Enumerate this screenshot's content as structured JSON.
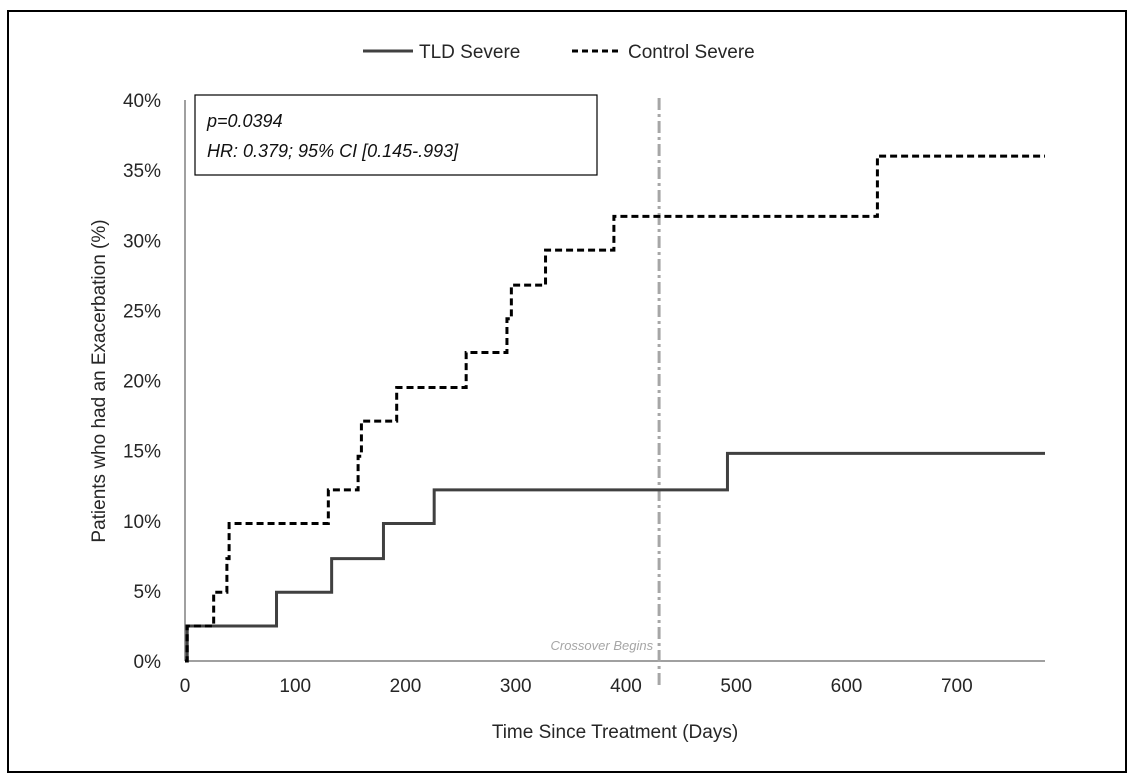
{
  "chart_data": {
    "type": "line",
    "step": true,
    "xlabel": "Time Since Treatment (Days)",
    "ylabel": "Patients who had an Exacerbation (%)",
    "xlim": [
      0,
      780
    ],
    "ylim": [
      0,
      40
    ],
    "x_ticks": [
      0,
      100,
      200,
      300,
      400,
      500,
      600,
      700
    ],
    "x_tick_labels": [
      "0",
      "100",
      "200",
      "300",
      "400",
      "500",
      "600",
      "700"
    ],
    "y_ticks": [
      0,
      5,
      10,
      15,
      20,
      25,
      30,
      35,
      40
    ],
    "y_tick_labels": [
      "0%",
      "5%",
      "10%",
      "15%",
      "20%",
      "25%",
      "30%",
      "35%",
      "40%"
    ],
    "grid": false,
    "legend": {
      "position": "top-center"
    },
    "series": [
      {
        "name": "TLD Severe",
        "style": "solid",
        "color": "#404040",
        "x": [
          0,
          2,
          83,
          133,
          180,
          226,
          492,
          780
        ],
        "y": [
          0,
          2.5,
          4.9,
          7.3,
          9.8,
          12.2,
          14.8,
          14.8
        ]
      },
      {
        "name": "Control Severe",
        "style": "dashed",
        "color": "#000000",
        "x": [
          0,
          2,
          26,
          38,
          40,
          130,
          157,
          160,
          192,
          255,
          292,
          296,
          327,
          389,
          628,
          780
        ],
        "y": [
          0,
          2.5,
          4.9,
          7.3,
          9.8,
          12.2,
          14.6,
          17.1,
          19.5,
          22.0,
          24.4,
          26.8,
          29.3,
          31.7,
          36.0,
          36.0
        ]
      }
    ],
    "reference_line": {
      "x": 430,
      "label": "Crossover Begins",
      "color": "#a6a6a6"
    },
    "annotations": [
      "p=0.0394",
      "HR: 0.379; 95% CI [0.145-.993]"
    ]
  }
}
